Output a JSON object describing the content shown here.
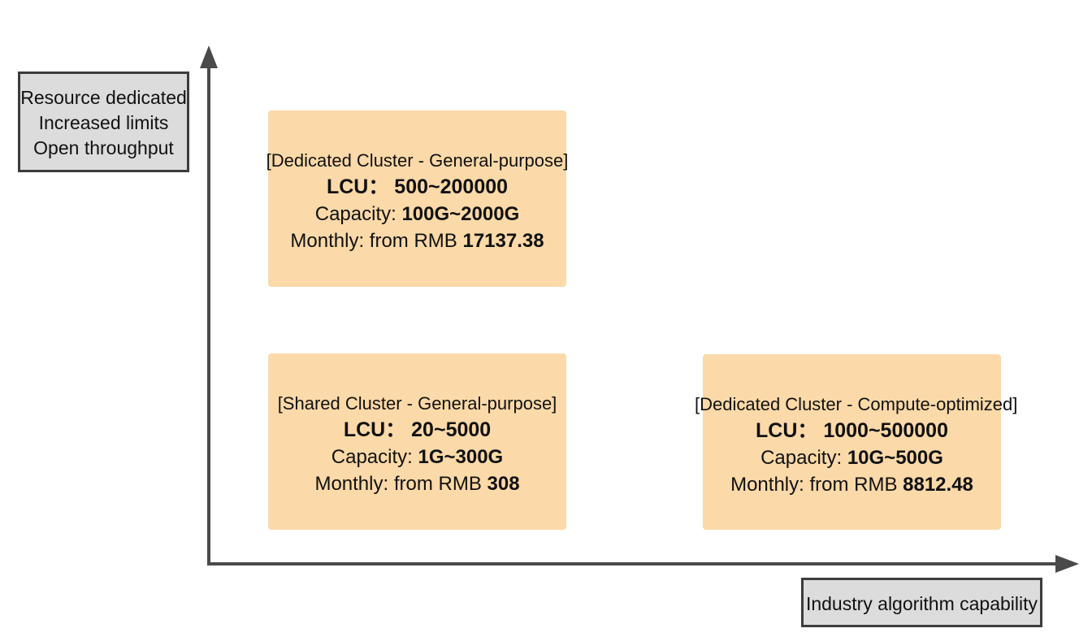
{
  "axes": {
    "y_label_lines": [
      "Resource dedicated",
      "Increased limits",
      "Open throughput"
    ],
    "x_label": "Industry algorithm capability",
    "axis_color": "#4a4a4a"
  },
  "tiers": {
    "dedicated_general": {
      "title": "[Dedicated Cluster - General-purpose]",
      "lcu_prefix": "LCU：",
      "lcu_range": "500~200000",
      "capacity_prefix": "Capacity: ",
      "capacity_range": "100G~2000G",
      "monthly_prefix": "Monthly: from RMB ",
      "monthly_price": "17137.38"
    },
    "shared_general": {
      "title": "[Shared Cluster - General-purpose]",
      "lcu_prefix": "LCU：",
      "lcu_range": "20~5000",
      "capacity_prefix": "Capacity: ",
      "capacity_range": "1G~300G",
      "monthly_prefix": "Monthly: from RMB ",
      "monthly_price": "308"
    },
    "dedicated_compute": {
      "title": "[Dedicated Cluster - Compute-optimized]",
      "lcu_prefix": "LCU：",
      "lcu_range": "1000~500000",
      "capacity_prefix": "Capacity: ",
      "capacity_range": "10G~500G",
      "monthly_prefix": "Monthly: from RMB ",
      "monthly_price": "8812.48"
    }
  },
  "colors": {
    "box_fill": "#fbd9a8",
    "label_fill": "#dcdcdc",
    "label_border": "#3c3c3c"
  }
}
